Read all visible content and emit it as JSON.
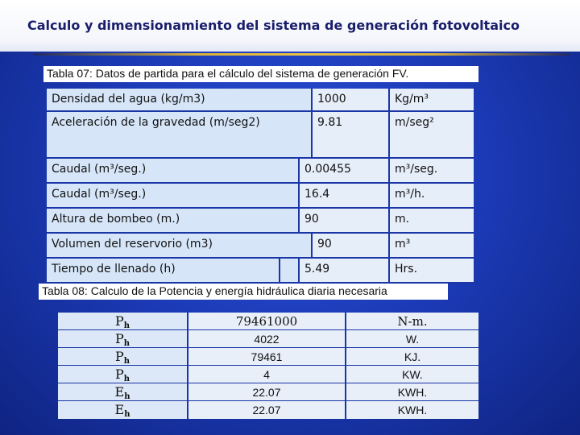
{
  "title": "Calculo y dimensionamiento del sistema de generación fotovoltaico",
  "table07": {
    "caption": "Tabla 07: Datos de partida para el cálculo del sistema de generación FV.",
    "rows": [
      {
        "label": "Densidad del agua (kg/m3)",
        "value": "1000",
        "unit": "Kg/m³"
      },
      {
        "label": "Aceleración de la gravedad (m/seg2)",
        "value": "9.81",
        "unit": "m/seg²"
      },
      {
        "label": "Caudal (m³/seg.)",
        "value": "0.00455",
        "unit": "m³/seg."
      },
      {
        "label": "Caudal (m³/seg.)",
        "value": "16.4",
        "unit": "m³/h."
      },
      {
        "label": "Altura de bombeo (m.)",
        "value": "90",
        "unit": "m."
      },
      {
        "label": "Volumen del reservorio (m3)",
        "value": "90",
        "unit": "m³"
      },
      {
        "label": "Tiempo de llenado (h)",
        "value": "5.49",
        "unit": "Hrs."
      }
    ]
  },
  "table08": {
    "caption": "Tabla 08: Calculo de la Potencia y energía hidráulica diaria necesaria",
    "rows": [
      {
        "symbol": "P",
        "sub": "h",
        "value": "79461000",
        "unit": "N-m."
      },
      {
        "symbol": "P",
        "sub": "h",
        "value": "4022",
        "unit": "W."
      },
      {
        "symbol": "P",
        "sub": "h",
        "value": "79461",
        "unit": "KJ."
      },
      {
        "symbol": "P",
        "sub": "h",
        "value": "4",
        "unit": "KW."
      },
      {
        "symbol": "E",
        "sub": "h",
        "value": "22.07",
        "unit": "KWH."
      },
      {
        "symbol": "E",
        "sub": "h",
        "value": "22.07",
        "unit": "KWH."
      }
    ]
  }
}
